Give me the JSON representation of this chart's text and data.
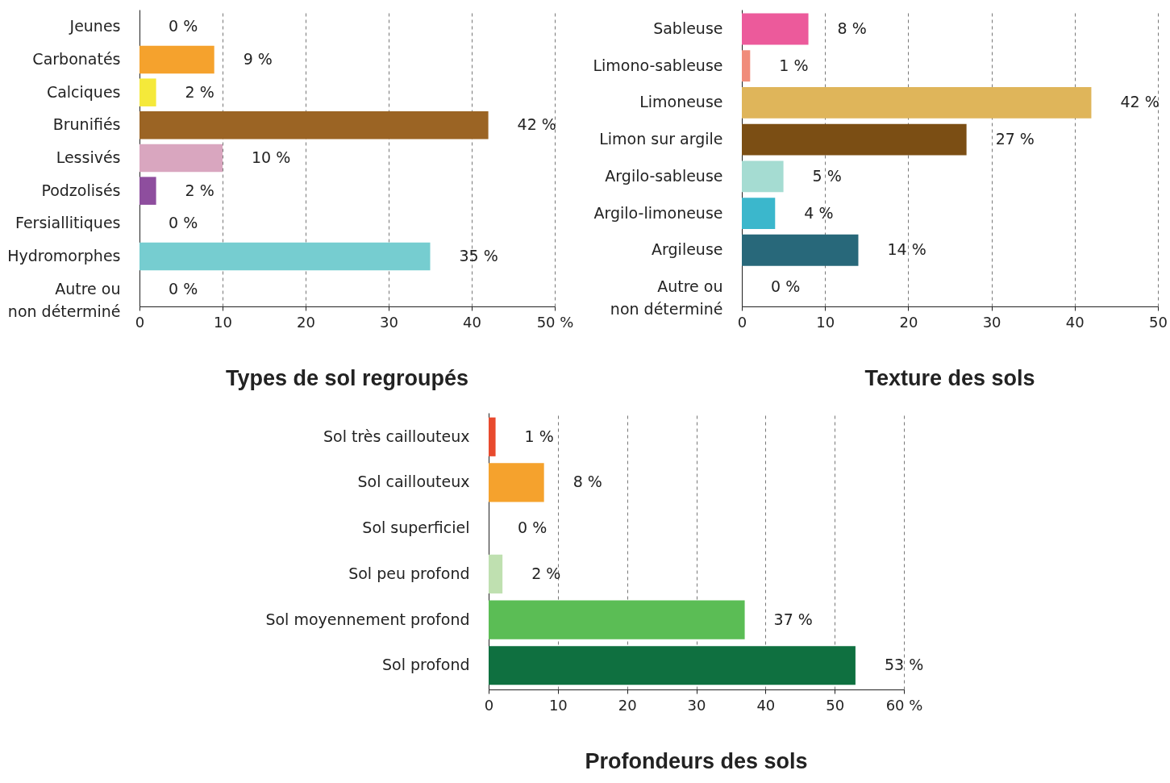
{
  "chart_data": [
    {
      "type": "bar",
      "orientation": "horizontal",
      "title": "Types de sol regroupés",
      "categories": [
        "Jeunes",
        "Carbonatés",
        "Calciques",
        "Brunifiés",
        "Lessivés",
        "Podzolisés",
        "Fersiallitiques",
        "Hydromorphes",
        "Autre ou\nnon déterminé"
      ],
      "values": [
        0,
        9,
        2,
        42,
        10,
        2,
        0,
        35,
        0
      ],
      "value_labels": [
        "0 %",
        "9 %",
        "2 %",
        "42 %",
        "10 %",
        "2 %",
        "0 %",
        "35 %",
        "0 %"
      ],
      "colors": [
        "#cccccc",
        "#f5a22d",
        "#f5e93a",
        "#9b6424",
        "#d9a6bf",
        "#8e4e9e",
        "#cccccc",
        "#76cdd0",
        "#cccccc"
      ],
      "xlim": [
        0,
        50
      ],
      "xticks": [
        0,
        10,
        20,
        30,
        40,
        {
          "value": 50,
          "label": "50 %"
        }
      ],
      "grid": "x"
    },
    {
      "type": "bar",
      "orientation": "horizontal",
      "title": "Texture des sols",
      "categories": [
        "Sableuse",
        "Limono-sableuse",
        "Limoneuse",
        "Limon sur argile",
        "Argilo-sableuse",
        "Argilo-limoneuse",
        "Argileuse",
        "Autre ou\nnon déterminé"
      ],
      "values": [
        8,
        1,
        42,
        27,
        5,
        4,
        14,
        0
      ],
      "value_labels": [
        "8 %",
        "1 %",
        "42 %",
        "27 %",
        "5 %",
        "4 %",
        "14 %",
        "0 %"
      ],
      "colors": [
        "#ec5a9b",
        "#f08c7a",
        "#dfb55a",
        "#7b4e14",
        "#a5dcd2",
        "#3bb7cc",
        "#28687a",
        "#cccccc"
      ],
      "xlim": [
        0,
        50
      ],
      "xticks": [
        0,
        10,
        20,
        30,
        40,
        50
      ],
      "grid": "x"
    },
    {
      "type": "bar",
      "orientation": "horizontal",
      "title": "Profondeurs des sols",
      "categories": [
        "Sol très caillouteux",
        "Sol caillouteux",
        "Sol superficiel",
        "Sol peu profond",
        "Sol moyennement profond",
        "Sol profond"
      ],
      "values": [
        1,
        8,
        0,
        2,
        37,
        53
      ],
      "value_labels": [
        "1 %",
        "8 %",
        "0 %",
        "2 %",
        "37 %",
        "53 %"
      ],
      "colors": [
        "#e84a2e",
        "#f5a22d",
        "#a0a020",
        "#bfe0b0",
        "#5bbd55",
        "#0f7040"
      ],
      "xlim": [
        0,
        60
      ],
      "xticks": [
        0,
        10,
        20,
        30,
        40,
        50,
        {
          "value": 60,
          "label": "60 %"
        }
      ],
      "grid": "x"
    }
  ]
}
